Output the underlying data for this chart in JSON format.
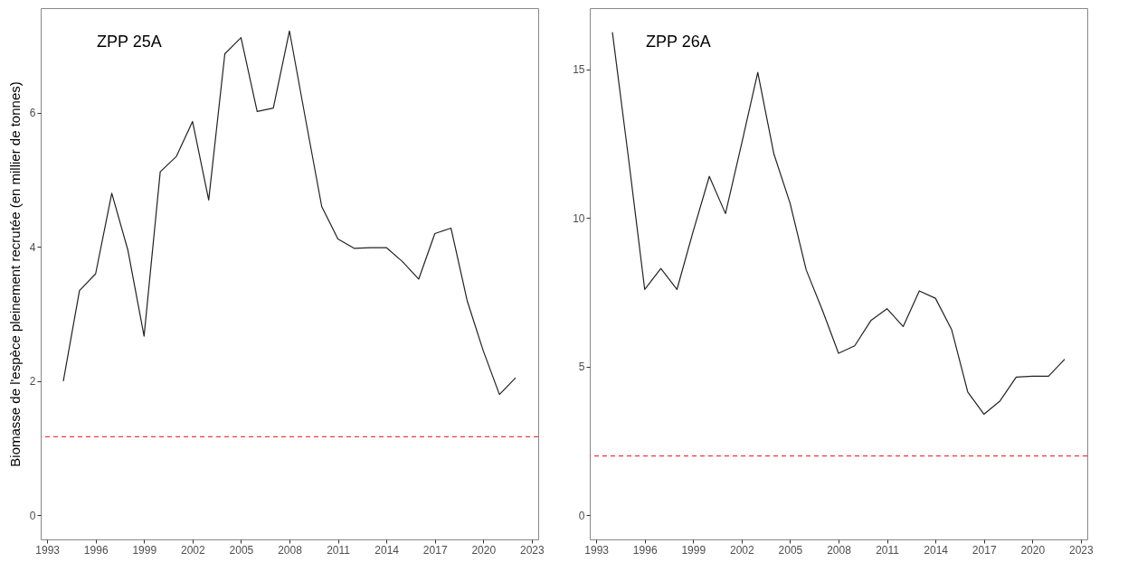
{
  "chart_data": [
    {
      "type": "line",
      "ylabel": "Biomasse de l'espèce pleinement recrutée (en millier de tonnes)",
      "annotations": [
        "ZPP 25A"
      ],
      "x": [
        1994,
        1995,
        1996,
        1997,
        1998,
        1999,
        2000,
        2001,
        2002,
        2003,
        2004,
        2005,
        2006,
        2007,
        2008,
        2009,
        2010,
        2011,
        2012,
        2013,
        2014,
        2015,
        2016,
        2017,
        2018,
        2019,
        2020,
        2021,
        2022
      ],
      "series": [
        {
          "color": "#222222",
          "values": [
            2.0,
            3.35,
            3.6,
            4.8,
            3.95,
            2.67,
            5.12,
            5.35,
            5.87,
            4.7,
            6.88,
            7.12,
            6.02,
            6.07,
            7.22,
            5.9,
            4.6,
            4.12,
            3.98,
            3.99,
            3.99,
            3.78,
            3.52,
            4.2,
            4.28,
            3.2,
            2.45,
            1.8,
            2.05
          ]
        }
      ],
      "xlim": [
        1992.6,
        2023.4
      ],
      "ylim": [
        -0.36,
        7.56
      ],
      "xticks": [
        1993,
        1996,
        1999,
        2002,
        2005,
        2008,
        2011,
        2014,
        2017,
        2020,
        2023
      ],
      "yticks": [
        0,
        2,
        4,
        6
      ],
      "grid": false,
      "ref_lines": [
        {
          "axis": "y",
          "value": 1.17,
          "color": "#f03a3a",
          "line_style": "dashed"
        }
      ]
    },
    {
      "type": "line",
      "annotations": [
        "ZPP 26A"
      ],
      "x": [
        1994,
        1995,
        1996,
        1997,
        1998,
        1999,
        2000,
        2001,
        2002,
        2003,
        2004,
        2005,
        2006,
        2007,
        2008,
        2009,
        2010,
        2011,
        2012,
        2013,
        2014,
        2015,
        2016,
        2017,
        2018,
        2019,
        2020,
        2021,
        2022
      ],
      "series": [
        {
          "color": "#222222",
          "values": [
            16.25,
            12.0,
            7.6,
            8.3,
            7.6,
            9.55,
            11.4,
            10.15,
            12.5,
            14.9,
            12.15,
            10.5,
            8.25,
            6.9,
            5.45,
            5.7,
            6.55,
            6.95,
            6.35,
            7.55,
            7.3,
            6.25,
            4.15,
            3.4,
            3.85,
            4.65,
            4.68,
            4.68,
            5.25
          ]
        }
      ],
      "xlim": [
        1992.6,
        2023.4
      ],
      "ylim": [
        -0.81,
        17.06
      ],
      "xticks": [
        1993,
        1996,
        1999,
        2002,
        2005,
        2008,
        2011,
        2014,
        2017,
        2020,
        2023
      ],
      "yticks": [
        0,
        5,
        10,
        15
      ],
      "grid": false,
      "ref_lines": [
        {
          "axis": "y",
          "value": 2.0,
          "color": "#f03a3a",
          "line_style": "dashed"
        }
      ]
    }
  ]
}
